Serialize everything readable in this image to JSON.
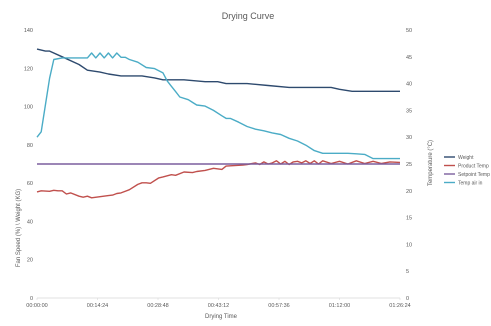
{
  "chart_data": {
    "type": "line",
    "title": "Drying Curve",
    "xlabel": "Drying Time",
    "ylabel_left": "Fan Speed (%) \\ Weight (KG)",
    "ylabel_right": "Temperature (°C)",
    "x_tick_labels": [
      "00:00:00",
      "00:14:24",
      "00:28:48",
      "00:43:12",
      "00:57:36",
      "01:12:00",
      "01:26:24"
    ],
    "xlim_minutes": [
      0,
      86.4
    ],
    "ylim_left": [
      0,
      140
    ],
    "y_ticks_left": [
      0,
      20,
      40,
      60,
      80,
      100,
      120,
      140
    ],
    "ylim_right": [
      0,
      50
    ],
    "y_ticks_right": [
      0,
      5,
      10,
      15,
      20,
      25,
      30,
      35,
      40,
      45,
      50
    ],
    "grid": false,
    "legend_position": "right",
    "series": [
      {
        "name": "Weight",
        "axis": "left",
        "color": "#2e4a6e",
        "x_minutes": [
          0,
          2,
          3,
          6,
          10,
          12,
          15,
          17,
          20,
          25,
          28,
          30,
          35,
          40,
          43,
          45,
          50,
          55,
          60,
          65,
          70,
          72,
          75,
          80,
          86.4
        ],
        "values": [
          130,
          129,
          129,
          126,
          122,
          119,
          118,
          117,
          116,
          116,
          115,
          114,
          114,
          113,
          113,
          112,
          112,
          111,
          110,
          110,
          110,
          109,
          108,
          108,
          108
        ]
      },
      {
        "name": "Product Temp",
        "axis": "right",
        "color": "#c0504d",
        "x_minutes": [
          0,
          1,
          3,
          4,
          5,
          6,
          7,
          8,
          10,
          11,
          12,
          13,
          15,
          17,
          18,
          19,
          20,
          22,
          24,
          25,
          26,
          27,
          29,
          30,
          32,
          33,
          35,
          37,
          38,
          40,
          42,
          44,
          45,
          47,
          49,
          50,
          52,
          53,
          54,
          55,
          56,
          57,
          58,
          59,
          60,
          61,
          62,
          63,
          64,
          65,
          66,
          67,
          68,
          70,
          72,
          74,
          76,
          78,
          80,
          82,
          84,
          86.4
        ],
        "values": [
          19.8,
          20.0,
          19.9,
          20.1,
          20.0,
          20.0,
          19.4,
          19.6,
          19.0,
          18.8,
          19.0,
          18.7,
          18.9,
          19.1,
          19.2,
          19.5,
          19.6,
          20.2,
          21.2,
          21.5,
          21.5,
          21.4,
          22.4,
          22.6,
          23.0,
          22.9,
          23.5,
          23.4,
          23.6,
          23.8,
          24.2,
          24.0,
          24.6,
          24.7,
          24.8,
          24.9,
          25.2,
          24.9,
          25.4,
          25.0,
          25.2,
          25.6,
          25.0,
          25.5,
          24.9,
          25.4,
          25.5,
          25.2,
          25.6,
          25.1,
          25.6,
          25.0,
          25.6,
          25.1,
          25.5,
          25.0,
          25.6,
          25.1,
          25.5,
          25.1,
          25.4,
          25.3
        ]
      },
      {
        "name": "Setpoint Temp",
        "axis": "right",
        "color": "#7b5f9e",
        "x_minutes": [
          0,
          86.4
        ],
        "values": [
          25,
          25
        ]
      },
      {
        "name": "Temp air in",
        "axis": "right",
        "color": "#4bacc6",
        "x_minutes": [
          0,
          1,
          2,
          3,
          4,
          6,
          8,
          12,
          13,
          14,
          15,
          16,
          17,
          18,
          19,
          20,
          21,
          22,
          24,
          26,
          28,
          30,
          31,
          32,
          33,
          34,
          36,
          37,
          38,
          40,
          42,
          44,
          45,
          46,
          48,
          50,
          52,
          54,
          56,
          58,
          60,
          62,
          64,
          66,
          68,
          70,
          72,
          74,
          76,
          78,
          80,
          82,
          84,
          86.4
        ],
        "values": [
          30,
          31,
          36,
          41,
          44.5,
          44.8,
          44.8,
          44.8,
          45.7,
          44.8,
          45.7,
          44.8,
          45.7,
          44.8,
          45.7,
          44.9,
          44.9,
          44.5,
          44.0,
          43.0,
          42.8,
          42.0,
          40.5,
          39.5,
          38.5,
          37.5,
          37.0,
          36.5,
          36.0,
          35.8,
          35.0,
          34.0,
          33.5,
          33.5,
          32.8,
          32.0,
          31.5,
          31.2,
          30.8,
          30.5,
          29.8,
          29.3,
          28.5,
          27.5,
          27.0,
          27.0,
          27.0,
          27.0,
          26.9,
          26.8,
          26.0,
          26.0,
          26.0,
          26.0
        ]
      }
    ]
  }
}
